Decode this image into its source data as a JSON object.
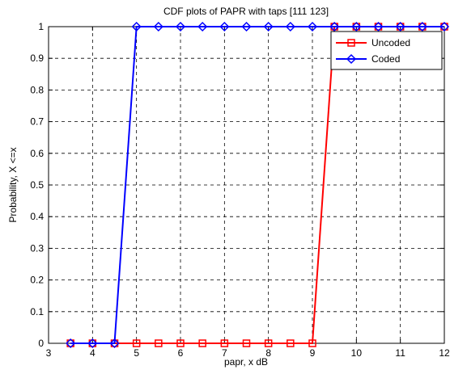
{
  "chart_data": {
    "type": "line",
    "title": "CDF plots of PAPR with taps [111 123]",
    "xlabel": "papr, x dB",
    "ylabel": "Probability, X <=x",
    "xlim": [
      3,
      12
    ],
    "ylim": [
      0,
      1
    ],
    "xticks": [
      "3",
      "4",
      "5",
      "6",
      "7",
      "8",
      "9",
      "10",
      "11",
      "12"
    ],
    "yticks": [
      "0",
      "0.1",
      "0.2",
      "0.3",
      "0.4",
      "0.5",
      "0.6",
      "0.7",
      "0.8",
      "0.9",
      "1"
    ],
    "grid": true,
    "legend_position": "top-right",
    "x": [
      3.5,
      4,
      4.5,
      5,
      5.5,
      6,
      6.5,
      7,
      7.5,
      8,
      8.5,
      9,
      9.5,
      10,
      10.5,
      11,
      11.5,
      12
    ],
    "series": [
      {
        "name": "Uncoded",
        "color": "#ff0000",
        "marker": "square",
        "values": [
          0,
          0,
          0,
          0,
          0,
          0,
          0,
          0,
          0,
          0,
          0,
          0,
          1,
          1,
          1,
          1,
          1,
          1
        ]
      },
      {
        "name": "Coded",
        "color": "#0000ff",
        "marker": "diamond",
        "values": [
          0,
          0,
          0,
          1,
          1,
          1,
          1,
          1,
          1,
          1,
          1,
          1,
          1,
          1,
          1,
          1,
          1,
          1
        ]
      }
    ]
  }
}
